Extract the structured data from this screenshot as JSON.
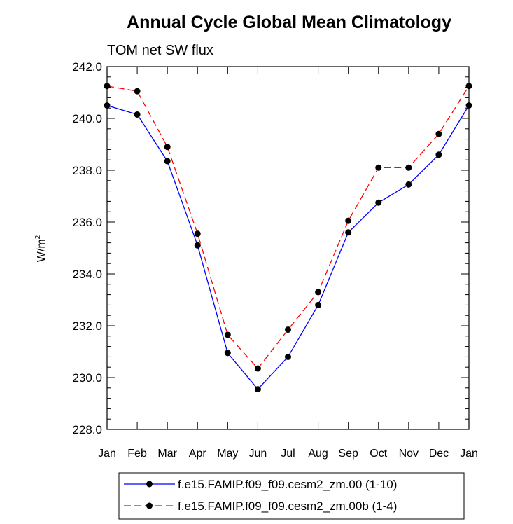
{
  "chart_data": {
    "type": "line",
    "title": "Annual Cycle Global Mean Climatology",
    "subtitle": "TOM net SW flux",
    "ylabel": "W/m",
    "ylabel_sup": "2",
    "xlabel": "",
    "categories": [
      "Jan",
      "Feb",
      "Mar",
      "Apr",
      "May",
      "Jun",
      "Jul",
      "Aug",
      "Sep",
      "Oct",
      "Nov",
      "Dec",
      "Jan"
    ],
    "ylim": [
      228.0,
      242.0
    ],
    "yticks": [
      228.0,
      230.0,
      232.0,
      234.0,
      236.0,
      238.0,
      240.0,
      242.0
    ],
    "ytick_labels": [
      "228.0",
      "230.0",
      "232.0",
      "234.0",
      "236.0",
      "238.0",
      "240.0",
      "242.0"
    ],
    "legend_position": "bottom",
    "grid": false,
    "series": [
      {
        "name": "f.e15.FAMIP.f09_f09.cesm2_zm.00 (1-10)",
        "color": "#0000ff",
        "dash": "solid",
        "marker": "filled-circle",
        "values": [
          240.5,
          240.15,
          238.35,
          235.1,
          230.95,
          229.55,
          230.8,
          232.8,
          235.6,
          236.75,
          237.45,
          238.6,
          240.5
        ]
      },
      {
        "name": "f.e15.FAMIP.f09_f09.cesm2_zm.00b (1-4)",
        "color": "#ff0000",
        "dash": "dashed",
        "marker": "filled-circle",
        "values": [
          241.25,
          241.05,
          238.9,
          235.55,
          231.65,
          230.35,
          231.85,
          233.3,
          236.05,
          238.1,
          238.1,
          239.4,
          241.25
        ]
      }
    ]
  }
}
